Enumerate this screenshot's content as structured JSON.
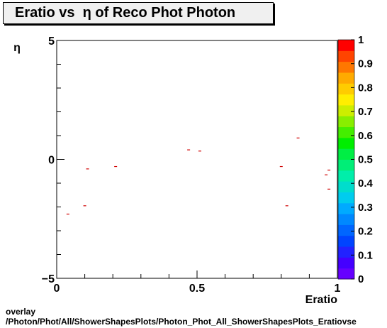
{
  "title": "Eratio vs  η of Reco Phot Photon",
  "footer": {
    "line1": "overlay",
    "line2": "/Photon/Phot/All/ShowerShapesPlots/Photon_Phot_All_ShowerShapesPlots_Eratiovse"
  },
  "chart_data": {
    "type": "scatter",
    "title": "Eratio vs  η of Reco Phot Photon",
    "xlabel": "Eratio",
    "ylabel": "η",
    "xlim": [
      0,
      1
    ],
    "ylim": [
      -5,
      5
    ],
    "x_tick_labels": [
      "0",
      "0.5",
      "1"
    ],
    "y_tick_labels": [
      "5",
      "0",
      "−5"
    ],
    "grid": false,
    "marker_color": "#d00000",
    "points": [
      {
        "x": 0.04,
        "y": -2.3
      },
      {
        "x": 0.1,
        "y": -1.95
      },
      {
        "x": 0.11,
        "y": -0.4
      },
      {
        "x": 0.21,
        "y": -0.3
      },
      {
        "x": 0.47,
        "y": 0.4
      },
      {
        "x": 0.51,
        "y": 0.35
      },
      {
        "x": 0.8,
        "y": -0.3
      },
      {
        "x": 0.82,
        "y": -1.95
      },
      {
        "x": 0.86,
        "y": 0.9
      },
      {
        "x": 0.96,
        "y": -0.65
      },
      {
        "x": 0.97,
        "y": -0.45
      },
      {
        "x": 0.97,
        "y": -1.25
      }
    ],
    "color_scale": {
      "range": [
        0,
        1
      ],
      "tick_labels": [
        "0",
        "0.1",
        "0.2",
        "0.3",
        "0.4",
        "0.5",
        "0.6",
        "0.7",
        "0.8",
        "0.9",
        "1"
      ],
      "colors": [
        "#6600ff",
        "#4400ff",
        "#2222ff",
        "#0044ff",
        "#0066ff",
        "#0088ff",
        "#00aaff",
        "#00ccee",
        "#00ddcc",
        "#00eeaa",
        "#00ee77",
        "#00ee44",
        "#00ee00",
        "#44ee00",
        "#88ee00",
        "#ccee00",
        "#ffee00",
        "#ffcc00",
        "#ffaa00",
        "#ff7700",
        "#ff4400",
        "#ff0000"
      ]
    }
  }
}
